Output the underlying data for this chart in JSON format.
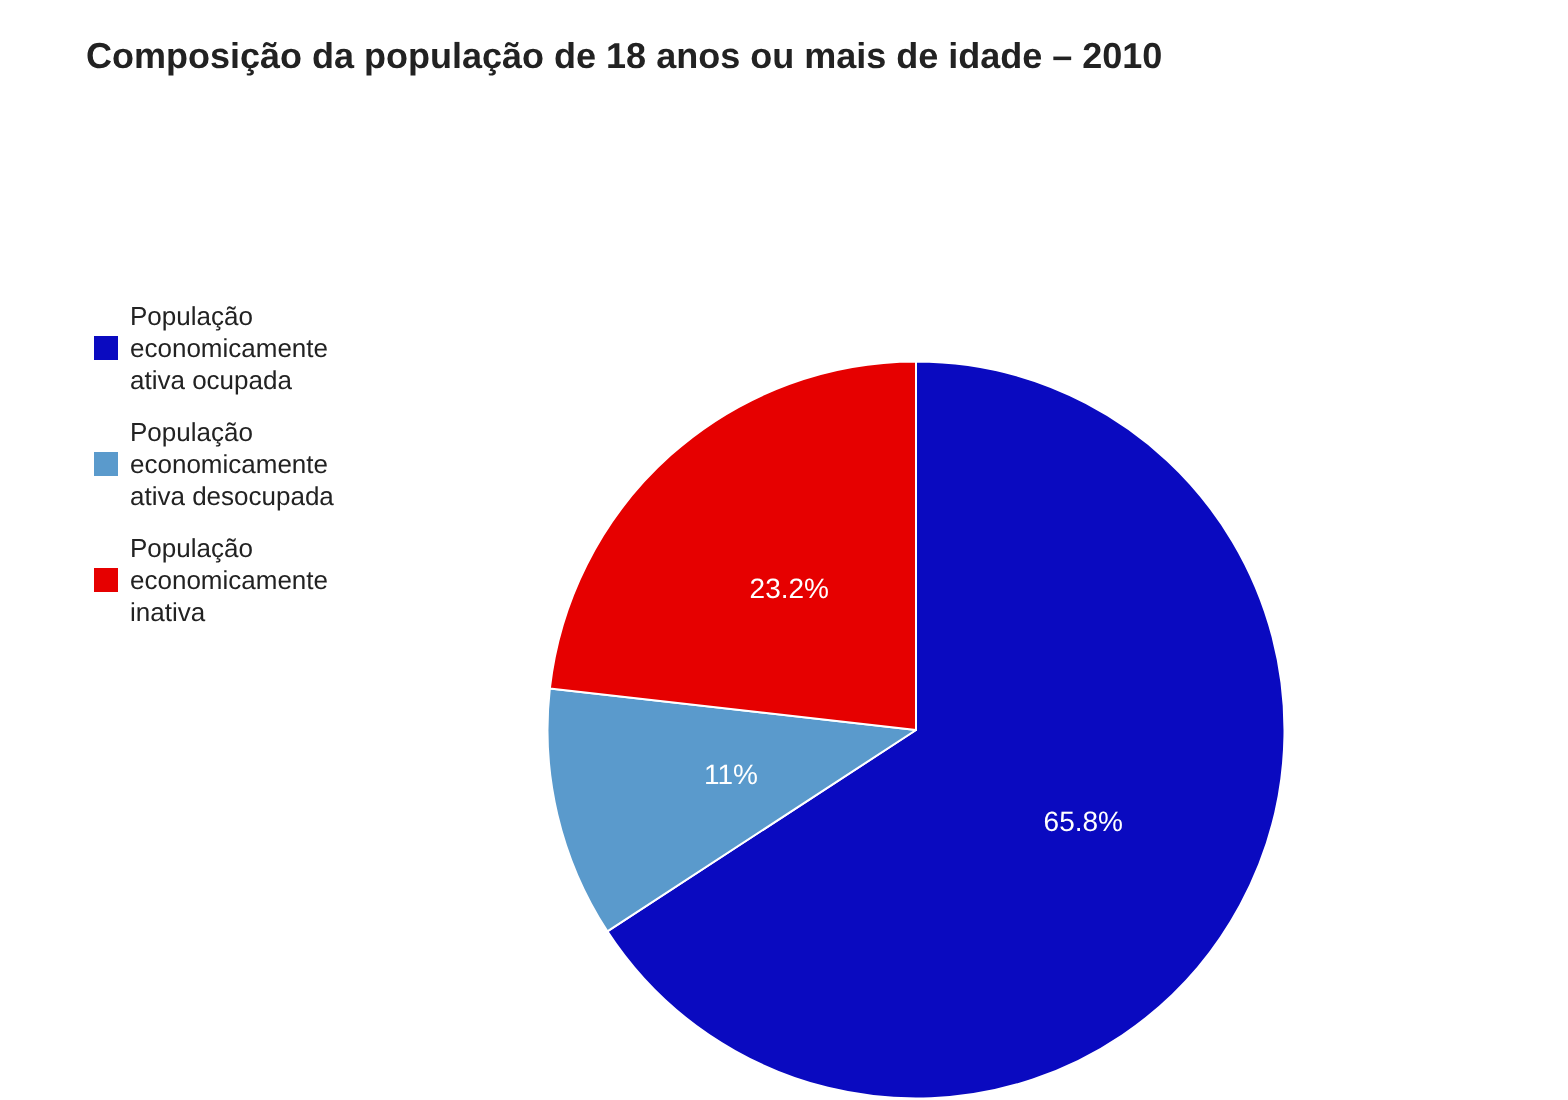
{
  "chart_data": {
    "type": "pie",
    "title": "Composição da população de 18 anos ou mais de idade – 2010",
    "categories": [
      "População economicamente ativa ocupada",
      "População economicamente ativa desocupada",
      "População economicamente inativa"
    ],
    "values": [
      65.8,
      11,
      23.2
    ],
    "colors": [
      "#0a0ac0",
      "#5a9acc",
      "#e60000"
    ],
    "value_labels": [
      "65.8%",
      "11%",
      "23.2%"
    ],
    "legend": "left"
  }
}
